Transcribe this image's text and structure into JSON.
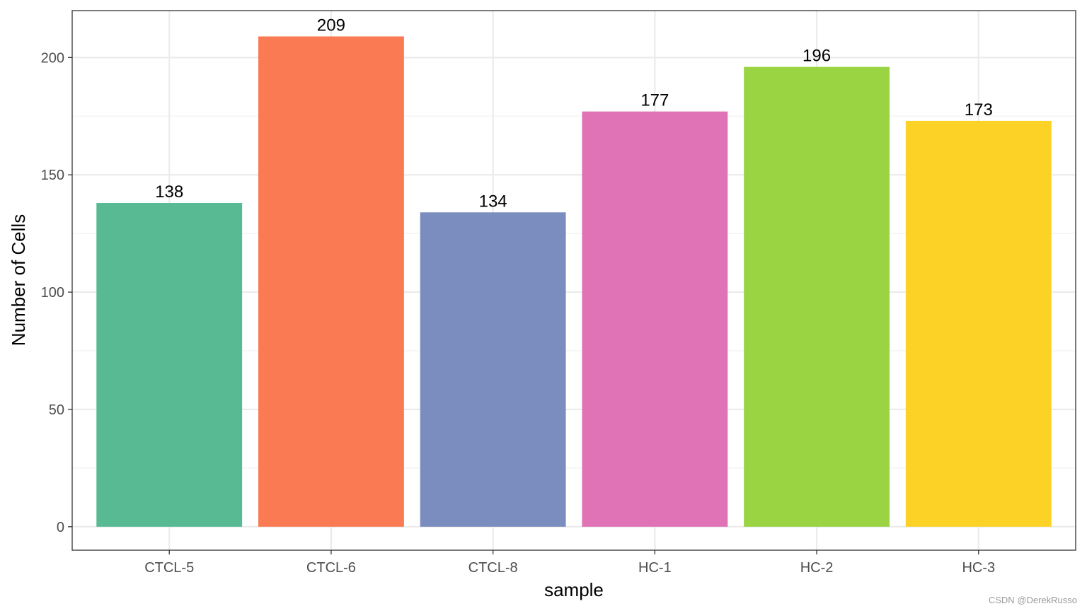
{
  "chart_data": {
    "type": "bar",
    "categories": [
      "CTCL-5",
      "CTCL-6",
      "CTCL-8",
      "HC-1",
      "HC-2",
      "HC-3"
    ],
    "values": [
      138,
      209,
      134,
      177,
      196,
      173
    ],
    "data_labels": [
      "138",
      "209",
      "134",
      "177",
      "196",
      "173"
    ],
    "colors": [
      "#57BA93",
      "#F97A53",
      "#7B8DBF",
      "#E072B6",
      "#9AD443",
      "#FDD226"
    ],
    "title": "",
    "xlabel": "sample",
    "ylabel": "Number of Cells",
    "ylim": [
      -10,
      220
    ],
    "yticks": [
      0,
      50,
      100,
      150,
      200
    ],
    "ytick_labels": [
      "0",
      "50",
      "100",
      "150",
      "200"
    ],
    "grid": true,
    "legend": "none"
  },
  "watermark": "CSDN @DerekRusso"
}
